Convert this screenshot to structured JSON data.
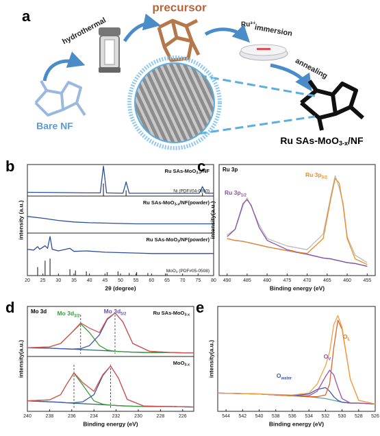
{
  "scheme": {
    "letter": "a",
    "start": "Bare NF",
    "step1": "hydrothermal",
    "middle": "precursor",
    "step2a": "Ru³⁺",
    "step2b": "immersion",
    "step3": "annealing",
    "product": [
      "Ru SAs-MoO",
      "3-x",
      "/NF"
    ]
  },
  "chart_data": [
    {
      "type": "line",
      "letter": "b",
      "xlabel": "2θ (degree)",
      "ylabel": "intensity (a.u.)",
      "xlim": [
        20,
        80
      ],
      "xticks": [
        20,
        25,
        30,
        35,
        40,
        45,
        50,
        55,
        60,
        65,
        70,
        75,
        80
      ],
      "panels": [
        {
          "label": [
            "Ru SAs-MoO",
            "3-x",
            "/NF"
          ],
          "ylim": [
            0,
            100
          ],
          "x": [
            20,
            30,
            40,
            43.5,
            44.5,
            45.5,
            50.8,
            51.8,
            52.8,
            60,
            75.4,
            76.4,
            77.4,
            80
          ],
          "series": [
            {
              "color": "#2a4d9c",
              "values": [
                12,
                11,
                10,
                10,
                95,
                10,
                9,
                45,
                9,
                9,
                9,
                30,
                9,
                9
              ]
            }
          ],
          "reference": {
            "label": "Ni (PDF#04-0850)",
            "color": "#333333",
            "x": [
              44.5,
              51.8,
              76.4
            ],
            "values": [
              40,
              18,
              10
            ]
          }
        },
        {
          "label": [
            "Ru SAs-MoO",
            "3-x",
            "/NF(powder)"
          ],
          "ylim": [
            0,
            100
          ],
          "x": [
            20,
            25,
            30,
            35,
            40,
            45,
            50,
            55,
            60,
            65,
            70,
            75,
            80
          ],
          "series": [
            {
              "color": "#2a4d9c",
              "values": [
                45,
                40,
                34,
                30,
                28,
                27,
                26,
                25,
                25,
                25,
                25,
                25,
                25
              ]
            }
          ]
        },
        {
          "label": [
            "Ru SAs-MoO",
            "3",
            "/NF(powder)"
          ],
          "ylim": [
            0,
            100
          ],
          "x": [
            20,
            22,
            23.3,
            24,
            25.7,
            26.5,
            27.3,
            28,
            30,
            33.7,
            35,
            39,
            45,
            50,
            55,
            60,
            70,
            80
          ],
          "series": [
            {
              "color": "#2a4d9c",
              "values": [
                62,
                60,
                68,
                62,
                70,
                64,
                92,
                62,
                58,
                64,
                57,
                58,
                55,
                54,
                53,
                52,
                52,
                52
              ]
            }
          ],
          "reference": {
            "label": [
              "MoO",
              "3",
              " (PDF#05-0508)"
            ],
            "color": "#333333",
            "x": [
              23.3,
              25.7,
              27.3,
              33.7,
              35.5,
              39,
              45.7,
              49.2,
              52.8,
              55.2,
              58.8,
              64.5
            ],
            "values": [
              20,
              35,
              40,
              15,
              12,
              10,
              8,
              10,
              6,
              8,
              6,
              5
            ]
          }
        }
      ]
    },
    {
      "type": "line",
      "letter": "c",
      "title": "Ru 3p",
      "xlabel": "Binding energy (eV)",
      "ylabel": "intensity(a.u.)",
      "xlim": [
        492,
        453
      ],
      "xticks": [
        490,
        485,
        480,
        475,
        470,
        465,
        460,
        455
      ],
      "panels": [
        {
          "ylim": [
            0,
            120
          ],
          "x": [
            490,
            488,
            486,
            485,
            484,
            482,
            480,
            475,
            470,
            466,
            464,
            463,
            462,
            461,
            460,
            458,
            455
          ],
          "series": [
            {
              "color": "#bbbbbb",
              "values": [
                44,
                50,
                76,
                84,
                75,
                55,
                40,
                32,
                28,
                45,
                88,
                108,
                95,
                78,
                42,
                22,
                14
              ]
            },
            {
              "color": "#3b4fa0",
              "values": [
                40,
                38,
                37,
                36,
                35,
                33,
                31,
                27,
                23,
                19,
                18,
                17,
                16,
                15,
                14,
                13,
                10
              ]
            },
            {
              "color": "#8a4fa8",
              "values": [
                42,
                50,
                78,
                82,
                76,
                52,
                38,
                28,
                23,
                19,
                18,
                17,
                16,
                15,
                14,
                13,
                10
              ]
            },
            {
              "color": "#f08a24",
              "values": [
                40,
                38,
                37,
                36,
                35,
                33,
                31,
                27,
                24,
                40,
                85,
                105,
                100,
                75,
                40,
                18,
                12
              ]
            }
          ],
          "annotations": [
            {
              "text": [
                "Ru 3p",
                "1/2"
              ],
              "color": "#8a4fa8"
            },
            {
              "text": [
                "Ru 3p",
                "3/2"
              ],
              "color": "#f08a24"
            }
          ]
        }
      ]
    },
    {
      "type": "line",
      "letter": "d",
      "title": "Mo 3d",
      "xlabel": "Binding energy (eV)",
      "ylabel": "intensity(a.u.)",
      "xlim": [
        240,
        225
      ],
      "xticks": [
        240,
        238,
        236,
        234,
        232,
        230,
        228,
        226
      ],
      "panels": [
        {
          "label": [
            "Ru SAs-MoO",
            "3-x"
          ],
          "ylim": [
            0,
            115
          ],
          "x": [
            240,
            238,
            237,
            236,
            235.2,
            234.4,
            233.5,
            232.8,
            232.1,
            231.4,
            230.5,
            229,
            227,
            225
          ],
          "peaks": [
            235.2,
            232.1
          ],
          "series": [
            {
              "color": "#2b6a6a",
              "values": [
                20,
                19,
                18,
                17,
                16,
                15,
                14,
                13,
                12,
                11,
                10,
                9,
                9,
                8
              ]
            },
            {
              "color": "#3a9b3a",
              "values": [
                20,
                22,
                30,
                55,
                75,
                55,
                25,
                15,
                12,
                11,
                10,
                9,
                9,
                8
              ]
            },
            {
              "color": "#3f55b0",
              "values": [
                20,
                19,
                18,
                17,
                18,
                25,
                50,
                85,
                100,
                80,
                30,
                12,
                9,
                8
              ]
            },
            {
              "color": "#d9534f",
              "values": [
                20,
                22,
                30,
                55,
                77,
                65,
                55,
                87,
                100,
                80,
                30,
                12,
                9,
                8
              ]
            }
          ],
          "annotations": [
            {
              "text": [
                "Mo 3d",
                "3/2"
              ],
              "color": "#3a9b3a"
            },
            {
              "text": [
                "Mo 3d",
                "5/2"
              ],
              "color": "#6a4fb0"
            }
          ]
        },
        {
          "label": [
            "MoO",
            "3-x"
          ],
          "ylim": [
            0,
            115
          ],
          "x": [
            240,
            238,
            237,
            236.5,
            235.8,
            235,
            234,
            233.2,
            232.5,
            231.8,
            231,
            229.5,
            227,
            225
          ],
          "peaks": [
            235.8,
            232.5
          ],
          "series": [
            {
              "color": "#2b6a6a",
              "values": [
                22,
                20,
                19,
                18,
                17,
                16,
                15,
                14,
                13,
                12,
                11,
                10,
                10,
                9
              ]
            },
            {
              "color": "#3a9b3a",
              "values": [
                22,
                24,
                35,
                55,
                80,
                55,
                22,
                15,
                13,
                12,
                11,
                10,
                10,
                9
              ]
            },
            {
              "color": "#3f55b0",
              "values": [
                22,
                20,
                19,
                18,
                18,
                20,
                35,
                75,
                95,
                70,
                25,
                11,
                10,
                9
              ]
            },
            {
              "color": "#d9534f",
              "values": [
                22,
                24,
                35,
                55,
                81,
                60,
                42,
                77,
                95,
                70,
                25,
                11,
                10,
                9
              ]
            }
          ]
        }
      ]
    },
    {
      "type": "line",
      "letter": "e",
      "xlabel": "Binding energy (eV)",
      "ylabel": "intensity(a.u.)",
      "xlim": [
        545,
        526
      ],
      "xticks": [
        544,
        542,
        540,
        538,
        536,
        534,
        532,
        530,
        528,
        526
      ],
      "panels": [
        {
          "ylim": [
            0,
            115
          ],
          "x": [
            545,
            540,
            536,
            534,
            533,
            532,
            531.5,
            531,
            530.5,
            530,
            529,
            528,
            526
          ],
          "series": [
            {
              "color": "#5aa0a0",
              "values": [
                20,
                19,
                17,
                16,
                15,
                14,
                13,
                12,
                11,
                10,
                9,
                9,
                8
              ]
            },
            {
              "color": "#3f55b0",
              "values": [
                20,
                19,
                17,
                19,
                24,
                26,
                22,
                16,
                12,
                10,
                9,
                9,
                8
              ]
            },
            {
              "color": "#9b4fa8",
              "values": [
                20,
                19,
                17,
                17,
                22,
                38,
                45,
                40,
                26,
                14,
                9,
                9,
                8
              ]
            },
            {
              "color": "#e0622a",
              "values": [
                20,
                19,
                17,
                16,
                16,
                18,
                30,
                70,
                100,
                90,
                35,
                12,
                8
              ]
            },
            {
              "color": "#f2a040",
              "values": [
                20,
                19,
                18,
                20,
                30,
                50,
                65,
                95,
                105,
                92,
                35,
                12,
                8
              ]
            }
          ],
          "annotations": [
            {
              "text": [
                "O",
                "L"
              ],
              "color": "#e07a2a"
            },
            {
              "text": [
                "O",
                "V"
              ],
              "color": "#9b4fa8"
            },
            {
              "text": [
                "O",
                "water"
              ],
              "color": "#3f55b0"
            }
          ]
        }
      ]
    }
  ]
}
